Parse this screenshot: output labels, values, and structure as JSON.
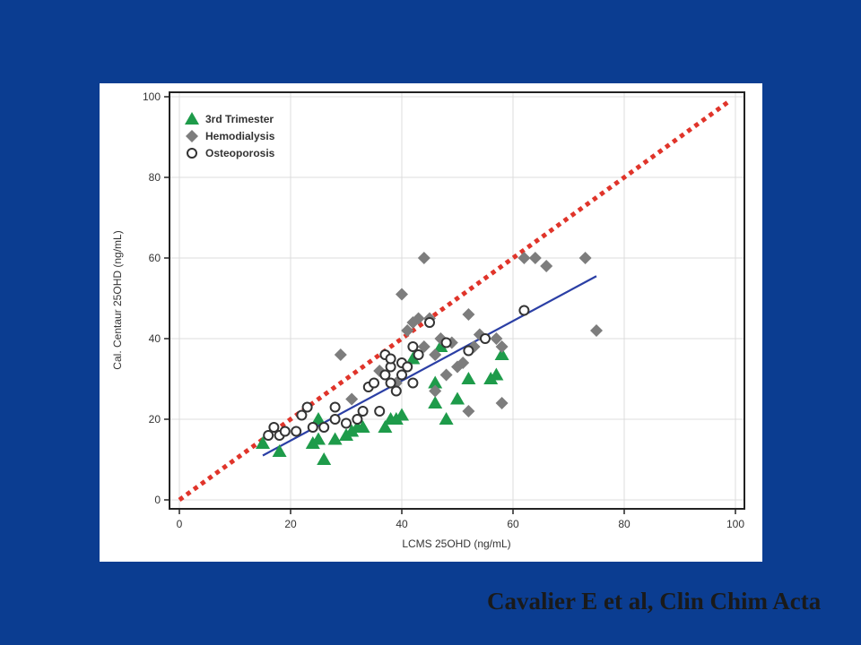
{
  "citation": "Cavalier E et al, Clin Chim Acta",
  "colors": {
    "background": "#0b3d91",
    "trimester": "#1e9b4a",
    "hemodialysis": "#7d7d7d",
    "osteoporosis": "#333333",
    "identity_line": "#e0342a",
    "regression_line": "#2b3fa5"
  },
  "chart_data": {
    "type": "scatter",
    "title": "",
    "xlabel": "LCMS 25OHD (ng/mL)",
    "ylabel": "Cal. Centaur 25OHD (ng/mL)",
    "xlim": [
      0,
      100
    ],
    "ylim": [
      0,
      100
    ],
    "xticks": [
      "0",
      "20",
      "40",
      "60",
      "80",
      "100"
    ],
    "yticks": [
      "0",
      "20",
      "40",
      "60",
      "80",
      "100"
    ],
    "grid": true,
    "legend_position": "top-left",
    "series": [
      {
        "name": "3rd Trimester",
        "marker": "triangle",
        "points": [
          [
            15,
            14
          ],
          [
            18,
            12
          ],
          [
            24,
            14
          ],
          [
            25,
            15
          ],
          [
            25,
            20
          ],
          [
            26,
            10
          ],
          [
            28,
            15
          ],
          [
            30,
            16
          ],
          [
            31,
            17
          ],
          [
            32,
            18
          ],
          [
            33,
            18
          ],
          [
            37,
            18
          ],
          [
            38,
            20
          ],
          [
            39,
            20
          ],
          [
            40,
            21
          ],
          [
            42,
            35
          ],
          [
            46,
            29
          ],
          [
            46,
            24
          ],
          [
            48,
            20
          ],
          [
            50,
            25
          ],
          [
            52,
            30
          ],
          [
            56,
            30
          ],
          [
            57,
            31
          ],
          [
            58,
            36
          ],
          [
            47,
            38
          ]
        ]
      },
      {
        "name": "Hemodialysis",
        "marker": "diamond",
        "points": [
          [
            29,
            36
          ],
          [
            31,
            25
          ],
          [
            36,
            32
          ],
          [
            39,
            29
          ],
          [
            40,
            51
          ],
          [
            41,
            42
          ],
          [
            42,
            44
          ],
          [
            43,
            45
          ],
          [
            44,
            60
          ],
          [
            44,
            38
          ],
          [
            45,
            45
          ],
          [
            46,
            36
          ],
          [
            46,
            27
          ],
          [
            47,
            40
          ],
          [
            48,
            31
          ],
          [
            49,
            39
          ],
          [
            50,
            33
          ],
          [
            51,
            34
          ],
          [
            52,
            22
          ],
          [
            52,
            46
          ],
          [
            53,
            38
          ],
          [
            54,
            41
          ],
          [
            57,
            40
          ],
          [
            58,
            38
          ],
          [
            58,
            24
          ],
          [
            62,
            60
          ],
          [
            64,
            60
          ],
          [
            66,
            58
          ],
          [
            73,
            60
          ],
          [
            75,
            42
          ]
        ]
      },
      {
        "name": "Osteoporosis",
        "marker": "open-circle",
        "points": [
          [
            16,
            16
          ],
          [
            17,
            18
          ],
          [
            18,
            16
          ],
          [
            19,
            17
          ],
          [
            21,
            17
          ],
          [
            22,
            21
          ],
          [
            23,
            23
          ],
          [
            24,
            18
          ],
          [
            26,
            18
          ],
          [
            28,
            20
          ],
          [
            28,
            23
          ],
          [
            30,
            19
          ],
          [
            32,
            20
          ],
          [
            33,
            22
          ],
          [
            34,
            28
          ],
          [
            36,
            22
          ],
          [
            37,
            31
          ],
          [
            37,
            36
          ],
          [
            38,
            33
          ],
          [
            38,
            29
          ],
          [
            39,
            27
          ],
          [
            40,
            31
          ],
          [
            40,
            34
          ],
          [
            41,
            33
          ],
          [
            42,
            29
          ],
          [
            42,
            38
          ],
          [
            43,
            36
          ],
          [
            45,
            44
          ],
          [
            48,
            39
          ],
          [
            52,
            37
          ],
          [
            55,
            40
          ],
          [
            62,
            47
          ],
          [
            35,
            29
          ],
          [
            38,
            35
          ]
        ]
      }
    ],
    "reference_lines": [
      {
        "kind": "identity",
        "style": "dotted",
        "x": [
          0,
          99
        ],
        "y": [
          0,
          99
        ]
      },
      {
        "kind": "regression",
        "style": "solid",
        "x": [
          15,
          75
        ],
        "y": [
          11,
          55.5
        ]
      }
    ]
  }
}
